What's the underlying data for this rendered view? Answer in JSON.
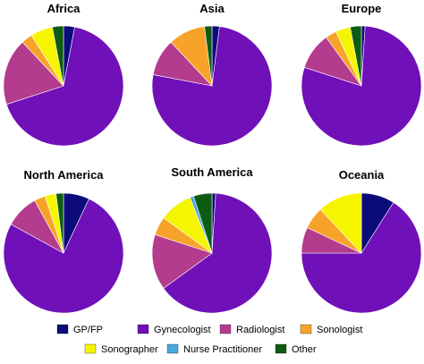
{
  "chart_data": [
    {
      "type": "pie",
      "title": "Africa",
      "categories": [
        "GP/FP",
        "Gynecologist",
        "Radiologist",
        "Sonologist",
        "Sonographer",
        "Nurse Practitioner",
        "Other"
      ],
      "values": [
        3,
        67,
        18,
        3,
        6,
        0,
        3
      ]
    },
    {
      "type": "pie",
      "title": "Asia",
      "categories": [
        "GP/FP",
        "Gynecologist",
        "Radiologist",
        "Sonologist",
        "Sonographer",
        "Nurse Practitioner",
        "Other"
      ],
      "values": [
        2,
        76,
        10,
        10,
        0,
        0,
        2
      ]
    },
    {
      "type": "pie",
      "title": "Europe",
      "categories": [
        "GP/FP",
        "Gynecologist",
        "Radiologist",
        "Sonologist",
        "Sonographer",
        "Nurse Practitioner",
        "Other"
      ],
      "values": [
        1,
        79,
        10,
        3,
        4,
        0,
        3
      ]
    },
    {
      "type": "pie",
      "title": "North America",
      "categories": [
        "GP/FP",
        "Gynecologist",
        "Radiologist",
        "Sonologist",
        "Sonographer",
        "Nurse Practitioner",
        "Other"
      ],
      "values": [
        7,
        76,
        9,
        3,
        3,
        0,
        2
      ]
    },
    {
      "type": "pie",
      "title": "South America",
      "categories": [
        "GP/FP",
        "Gynecologist",
        "Radiologist",
        "Sonologist",
        "Sonographer",
        "Nurse Practitioner",
        "Other"
      ],
      "values": [
        1,
        64,
        15,
        5,
        9,
        1,
        5
      ]
    },
    {
      "type": "pie",
      "title": "Oceania",
      "categories": [
        "GP/FP",
        "Gynecologist",
        "Radiologist",
        "Sonologist",
        "Sonographer",
        "Nurse Practitioner",
        "Other"
      ],
      "values": [
        9,
        66,
        7,
        6,
        12,
        0,
        0
      ]
    }
  ],
  "legend": [
    {
      "label": "GP/FP",
      "color": "#0b0b7a"
    },
    {
      "label": "Gynecologist",
      "color": "#7010b8"
    },
    {
      "label": "Radiologist",
      "color": "#b33c8e"
    },
    {
      "label": "Sonologist",
      "color": "#f7a32a"
    },
    {
      "label": "Sonographer",
      "color": "#f5f500"
    },
    {
      "label": "Nurse Practitioner",
      "color": "#4aa8e0"
    },
    {
      "label": "Other",
      "color": "#0e5c14"
    }
  ],
  "legend_position": "bottom",
  "slice_start": "top, clockwise"
}
